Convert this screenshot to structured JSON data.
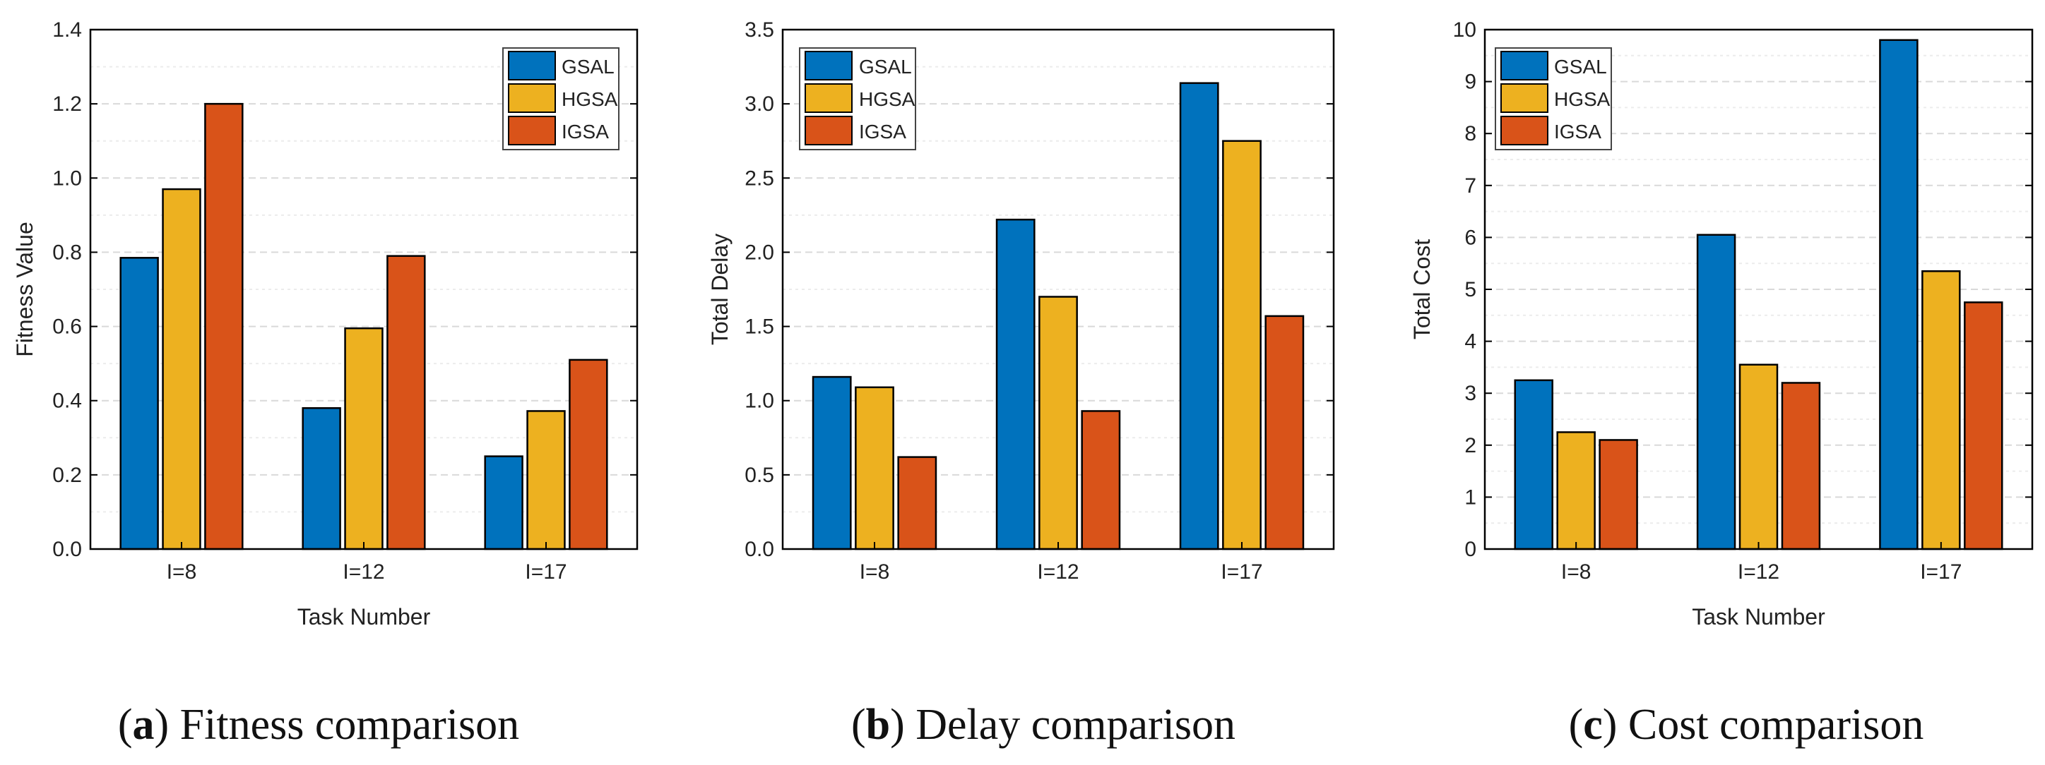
{
  "figure": {
    "panels": [
      {
        "letter": "a",
        "title": "Fitness comparison"
      },
      {
        "letter": "b",
        "title": "Delay comparison"
      },
      {
        "letter": "c",
        "title": "Cost comparison"
      }
    ]
  },
  "colors": {
    "GSAL": "#0072BD",
    "HGSA": "#EDB120",
    "IGSA": "#D95319"
  },
  "chart_data": [
    {
      "type": "bar",
      "title": "Fitness comparison",
      "xlabel": "Task Number",
      "ylabel": "Fitness Value",
      "categories": [
        "I=8",
        "I=12",
        "I=17"
      ],
      "ylim": [
        0,
        1.4
      ],
      "yticks": [
        0,
        0.2,
        0.4,
        0.6,
        0.8,
        1.0,
        1.2,
        1.4
      ],
      "ytick_labels": [
        "0.0",
        "0.2",
        "0.4",
        "0.6",
        "0.8",
        "1.0",
        "1.2",
        "1.4"
      ],
      "legend_position": "top-right",
      "series": [
        {
          "name": "GSAL",
          "values": [
            0.785,
            0.38,
            0.25
          ]
        },
        {
          "name": "HGSA",
          "values": [
            0.97,
            0.595,
            0.372
          ]
        },
        {
          "name": "IGSA",
          "values": [
            1.2,
            0.79,
            0.51
          ]
        }
      ]
    },
    {
      "type": "bar",
      "title": "Delay comparison",
      "xlabel": "",
      "ylabel": "Total Delay",
      "categories": [
        "I=8",
        "I=12",
        "I=17"
      ],
      "ylim": [
        0,
        3.5
      ],
      "yticks": [
        0,
        0.5,
        1.0,
        1.5,
        2.0,
        2.5,
        3.0,
        3.5
      ],
      "ytick_labels": [
        "0.0",
        "0.5",
        "1.0",
        "1.5",
        "2.0",
        "2.5",
        "3.0",
        "3.5"
      ],
      "legend_position": "top-left",
      "series": [
        {
          "name": "GSAL",
          "values": [
            1.16,
            2.22,
            3.14
          ]
        },
        {
          "name": "HGSA",
          "values": [
            1.09,
            1.7,
            2.75
          ]
        },
        {
          "name": "IGSA",
          "values": [
            0.62,
            0.93,
            1.57
          ]
        }
      ]
    },
    {
      "type": "bar",
      "title": "Cost comparison",
      "xlabel": "Task Number",
      "ylabel": "Total Cost",
      "categories": [
        "I=8",
        "I=12",
        "I=17"
      ],
      "ylim": [
        0,
        10
      ],
      "yticks": [
        0,
        1,
        2,
        3,
        4,
        5,
        6,
        7,
        8,
        9,
        10
      ],
      "ytick_labels": [
        "0",
        "1",
        "2",
        "3",
        "4",
        "5",
        "6",
        "7",
        "8",
        "9",
        "10"
      ],
      "legend_position": "top-left",
      "series": [
        {
          "name": "GSAL",
          "values": [
            3.25,
            6.05,
            9.8
          ]
        },
        {
          "name": "HGSA",
          "values": [
            2.25,
            3.55,
            5.35
          ]
        },
        {
          "name": "IGSA",
          "values": [
            2.1,
            3.2,
            4.75
          ]
        }
      ]
    }
  ]
}
